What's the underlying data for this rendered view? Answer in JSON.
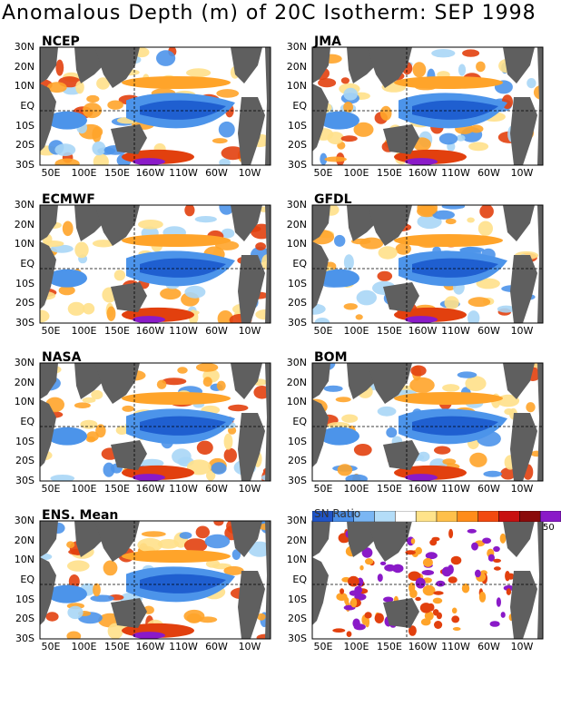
{
  "title": "Anomalous Depth (m) of 20C Isotherm: SEP 1998",
  "lat_ticks": [
    "30N",
    "20N",
    "10N",
    "EQ",
    "10S",
    "20S",
    "30S"
  ],
  "lon_ticks": [
    "50E",
    "100E",
    "150E",
    "160W",
    "110W",
    "60W",
    "10W"
  ],
  "panels": [
    {
      "name": "NCEP"
    },
    {
      "name": "JMA"
    },
    {
      "name": "ECMWF"
    },
    {
      "name": "GFDL"
    },
    {
      "name": "NASA"
    },
    {
      "name": "BOM"
    },
    {
      "name": "ENS. Mean"
    },
    {
      "name": ""
    }
  ],
  "colorbar": {
    "label": "SN Ratio",
    "max_label": "50",
    "colors": [
      "#2055c8",
      "#4a8ee8",
      "#7ab6f4",
      "#b4ddf8",
      "#ffffff",
      "#ffe38a",
      "#ffc04a",
      "#ff8c1a",
      "#f24a10",
      "#c81010",
      "#8a0a0a",
      "#8a1ac8"
    ]
  },
  "colors": {
    "land": "#5f5f5f",
    "deep_blue": "#1f5fd0",
    "mid_blue": "#4c94ea",
    "light_blue": "#a8d6f6",
    "yellow": "#ffe08a",
    "orange": "#ffa42a",
    "red": "#e2400e",
    "dark_red": "#9a0c0c",
    "purple": "#8a1ac8"
  }
}
